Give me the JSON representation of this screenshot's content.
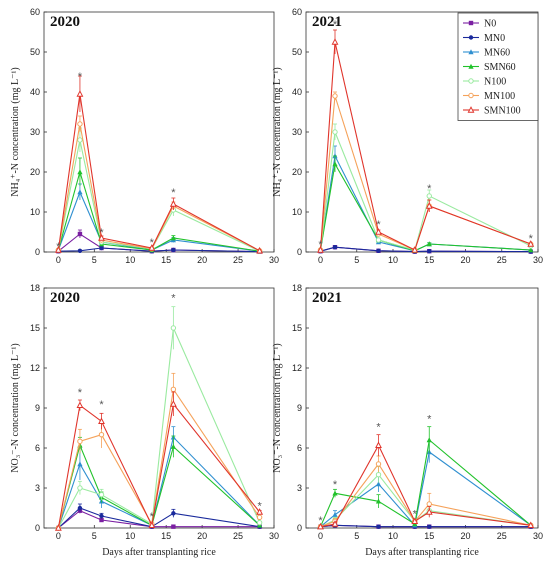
{
  "legend": [
    "N0",
    "MN0",
    "MN60",
    "SMN60",
    "N100",
    "MN100",
    "SMN100"
  ],
  "colors": {
    "N0": "#7b1fa2",
    "MN0": "#1a2a9c",
    "MN60": "#2f8fd0",
    "SMN60": "#21c22b",
    "N100": "#9aeaa0",
    "MN100": "#f5a25a",
    "SMN100": "#e0342b"
  },
  "markers": {
    "N0": "square",
    "MN0": "circle",
    "MN60": "triangle",
    "SMN60": "triangle",
    "N100": "circle-open",
    "MN100": "circle-open",
    "SMN100": "triangle-open"
  },
  "xlabel": "Days after transplanting rice",
  "chart_data": [
    {
      "type": "line",
      "title": "2020",
      "ylabel": "NH₄⁺-N concentration (mg L⁻¹)",
      "xlim": [
        -2,
        30
      ],
      "ylim": [
        0,
        60
      ],
      "xticks": [
        0,
        5,
        10,
        15,
        20,
        25,
        30
      ],
      "yticks": [
        0,
        10,
        20,
        30,
        40,
        50,
        60
      ],
      "x": [
        0,
        3,
        6,
        13,
        16,
        28
      ],
      "series": [
        {
          "name": "N0",
          "values": [
            0.2,
            4.5,
            1.0,
            0.2,
            0.5,
            0.1
          ],
          "err": [
            0,
            1,
            0.3,
            0,
            0.2,
            0
          ]
        },
        {
          "name": "MN0",
          "values": [
            0.2,
            0.3,
            1.0,
            0.2,
            0.5,
            0.1
          ],
          "err": [
            0,
            0.2,
            0.3,
            0,
            0.2,
            0
          ]
        },
        {
          "name": "MN60",
          "values": [
            0.5,
            15,
            2.5,
            0.5,
            3.0,
            0.2
          ],
          "err": [
            0,
            2,
            0.5,
            0,
            0.6,
            0
          ]
        },
        {
          "name": "SMN60",
          "values": [
            0.5,
            20,
            2.0,
            0.5,
            3.5,
            0.2
          ],
          "err": [
            0,
            3.5,
            0.5,
            0,
            0.6,
            0
          ]
        },
        {
          "name": "N100",
          "values": [
            0.5,
            28,
            2.5,
            0.8,
            10.5,
            0.2
          ],
          "err": [
            0,
            3,
            0.5,
            0,
            1.5,
            0
          ]
        },
        {
          "name": "MN100",
          "values": [
            0.5,
            32,
            3.0,
            0.8,
            11.5,
            0.3
          ],
          "err": [
            0,
            2,
            0.5,
            0,
            1,
            0
          ]
        },
        {
          "name": "SMN100",
          "values": [
            0.5,
            39.5,
            3.5,
            1.0,
            12,
            0.3
          ],
          "err": [
            0,
            4.5,
            0.5,
            0,
            1.5,
            0
          ]
        }
      ],
      "stars": [
        [
          0,
          1.5
        ],
        [
          3,
          44
        ],
        [
          6,
          5
        ],
        [
          13,
          2.5
        ],
        [
          16,
          15
        ]
      ]
    },
    {
      "type": "line",
      "title": "2021",
      "ylabel": "NH₄⁺-N concentration (mg L⁻¹)",
      "xlim": [
        -2,
        30
      ],
      "ylim": [
        0,
        60
      ],
      "xticks": [
        0,
        5,
        10,
        15,
        20,
        25,
        30
      ],
      "yticks": [
        0,
        10,
        20,
        30,
        40,
        50,
        60
      ],
      "x": [
        0,
        2,
        8,
        13,
        15,
        29
      ],
      "series": [
        {
          "name": "N0",
          "values": [
            0.2,
            1.2,
            0.3,
            0.1,
            0.2,
            0.1
          ],
          "err": [
            0,
            0.3,
            0.1,
            0,
            0,
            0
          ]
        },
        {
          "name": "MN0",
          "values": [
            0.2,
            1.2,
            0.3,
            0.1,
            0.2,
            0.1
          ],
          "err": [
            0,
            0.3,
            0.1,
            0,
            0,
            0
          ]
        },
        {
          "name": "MN60",
          "values": [
            0.5,
            24,
            2.5,
            0.3,
            2.0,
            0.5
          ],
          "err": [
            0,
            2.5,
            0.3,
            0,
            0.3,
            0
          ]
        },
        {
          "name": "SMN60",
          "values": [
            0.5,
            22,
            3.0,
            0.3,
            2.0,
            0.5
          ],
          "err": [
            0,
            2,
            0.3,
            0,
            0.3,
            0
          ]
        },
        {
          "name": "N100",
          "values": [
            0.5,
            30,
            3.0,
            0.5,
            14,
            1.5
          ],
          "err": [
            0,
            2,
            0.5,
            0,
            1.5,
            0
          ]
        },
        {
          "name": "MN100",
          "values": [
            0.5,
            39,
            4.5,
            0.5,
            11.5,
            2.0
          ],
          "err": [
            0,
            1,
            0.5,
            0,
            1.5,
            0
          ]
        },
        {
          "name": "SMN100",
          "values": [
            0.5,
            52.5,
            5.0,
            0.5,
            11.5,
            2.0
          ],
          "err": [
            0,
            3,
            0.5,
            0,
            1.5,
            0
          ]
        }
      ],
      "stars": [
        [
          0,
          2
        ],
        [
          2,
          57
        ],
        [
          8,
          7
        ],
        [
          15,
          16
        ],
        [
          29,
          3.5
        ]
      ]
    },
    {
      "type": "line",
      "title": "2020",
      "ylabel": "NO₃⁻-N concentration (mg L⁻¹)",
      "xlim": [
        -2,
        30
      ],
      "ylim": [
        0,
        18
      ],
      "xticks": [
        0,
        5,
        10,
        15,
        20,
        25,
        30
      ],
      "yticks": [
        0,
        3,
        6,
        9,
        12,
        15,
        18
      ],
      "x": [
        0,
        3,
        6,
        13,
        16,
        28
      ],
      "series": [
        {
          "name": "N0",
          "values": [
            0.0,
            1.3,
            0.6,
            0.1,
            0.1,
            0.1
          ],
          "err": [
            0,
            0.2,
            0.1,
            0,
            0,
            0
          ]
        },
        {
          "name": "MN0",
          "values": [
            0.0,
            1.5,
            0.9,
            0.1,
            1.1,
            0.1
          ],
          "err": [
            0,
            0.3,
            0.2,
            0,
            0.3,
            0
          ]
        },
        {
          "name": "MN60",
          "values": [
            0.0,
            4.8,
            2.0,
            0.2,
            6.8,
            0.2
          ],
          "err": [
            0,
            1.2,
            0.5,
            0,
            0.8,
            0
          ]
        },
        {
          "name": "SMN60",
          "values": [
            0.0,
            6.2,
            2.3,
            0.2,
            6.1,
            0.2
          ],
          "err": [
            0,
            0.6,
            0.4,
            0,
            0.8,
            0
          ]
        },
        {
          "name": "N100",
          "values": [
            0.0,
            3.0,
            2.5,
            0.3,
            15.0,
            0.4
          ],
          "err": [
            0,
            0.5,
            0.4,
            0,
            1.6,
            0
          ]
        },
        {
          "name": "MN100",
          "values": [
            0.0,
            6.5,
            7.0,
            0.3,
            10.4,
            0.8
          ],
          "err": [
            0,
            0.9,
            1.0,
            0,
            1.2,
            0
          ]
        },
        {
          "name": "SMN100",
          "values": [
            0.0,
            9.2,
            8.0,
            0.2,
            9.3,
            1.2
          ],
          "err": [
            0,
            0.4,
            0.6,
            0,
            0.9,
            0.1
          ]
        }
      ],
      "stars": [
        [
          3,
          10.2
        ],
        [
          6,
          9.3
        ],
        [
          13,
          0.9
        ],
        [
          16,
          17.3
        ],
        [
          28,
          1.7
        ]
      ]
    },
    {
      "type": "line",
      "title": "2021",
      "ylabel": "NO₃⁻-N concentration (mg L⁻¹)",
      "xlim": [
        -2,
        30
      ],
      "ylim": [
        0,
        18
      ],
      "xticks": [
        0,
        5,
        10,
        15,
        20,
        25,
        30
      ],
      "yticks": [
        0,
        3,
        6,
        9,
        12,
        15,
        18
      ],
      "x": [
        0,
        2,
        8,
        13,
        15,
        29
      ],
      "series": [
        {
          "name": "N0",
          "values": [
            0.1,
            0.2,
            0.1,
            0.1,
            0.1,
            0.1
          ],
          "err": [
            0,
            0,
            0,
            0,
            0,
            0
          ]
        },
        {
          "name": "MN0",
          "values": [
            0.1,
            0.2,
            0.1,
            0.1,
            0.1,
            0.1
          ],
          "err": [
            0,
            0,
            0,
            0,
            0,
            0
          ]
        },
        {
          "name": "MN60",
          "values": [
            0.1,
            1.0,
            3.3,
            0.2,
            5.7,
            0.2
          ],
          "err": [
            0,
            0.3,
            0.6,
            0,
            0.8,
            0
          ]
        },
        {
          "name": "SMN60",
          "values": [
            0.1,
            2.6,
            2.0,
            0.3,
            6.6,
            0.2
          ],
          "err": [
            0,
            0.3,
            0.5,
            0,
            1.0,
            0
          ]
        },
        {
          "name": "N100",
          "values": [
            0.1,
            0.6,
            4.0,
            0.5,
            1.3,
            0.2
          ],
          "err": [
            0,
            0.2,
            0.6,
            0,
            0.4,
            0
          ]
        },
        {
          "name": "MN100",
          "values": [
            0.1,
            0.5,
            4.8,
            0.5,
            1.8,
            0.2
          ],
          "err": [
            0,
            0.2,
            0.6,
            0,
            0.8,
            0
          ]
        },
        {
          "name": "SMN100",
          "values": [
            0.1,
            0.3,
            6.2,
            0.5,
            1.2,
            0.2
          ],
          "err": [
            0,
            0.1,
            0.8,
            0,
            0.4,
            0
          ]
        }
      ],
      "stars": [
        [
          0,
          0.6
        ],
        [
          2,
          3.3
        ],
        [
          8,
          7.6
        ],
        [
          13,
          1.1
        ],
        [
          15,
          8.2
        ]
      ]
    }
  ]
}
